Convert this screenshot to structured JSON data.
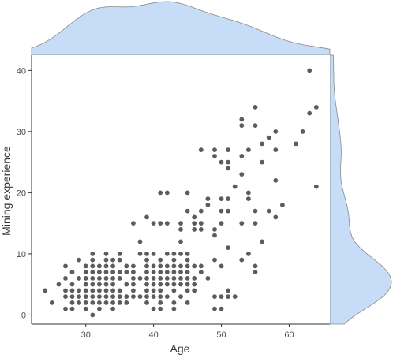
{
  "chart_data": {
    "type": "scatter",
    "title": "",
    "xlabel": "Age",
    "ylabel": "Mining experience",
    "xlim": [
      22,
      66
    ],
    "ylim": [
      -1.5,
      42.5
    ],
    "x_ticks": [
      30,
      40,
      50,
      60
    ],
    "y_ticks": [
      0,
      10,
      20,
      30,
      40
    ],
    "grid": false,
    "point_color": "#262626",
    "marginal_fill": "#c6dcf7",
    "marginal_stroke": "#8a8a8a",
    "points": [
      [
        24,
        4
      ],
      [
        25,
        2
      ],
      [
        26,
        5
      ],
      [
        27,
        1
      ],
      [
        27,
        3
      ],
      [
        27,
        4
      ],
      [
        27,
        6
      ],
      [
        27,
        8
      ],
      [
        28,
        1
      ],
      [
        28,
        2
      ],
      [
        28,
        3
      ],
      [
        28,
        4
      ],
      [
        28,
        5
      ],
      [
        28,
        7
      ],
      [
        29,
        2
      ],
      [
        29,
        3
      ],
      [
        29,
        4
      ],
      [
        29,
        6
      ],
      [
        29,
        9
      ],
      [
        30,
        1
      ],
      [
        30,
        2
      ],
      [
        30,
        3
      ],
      [
        30,
        4
      ],
      [
        30,
        5
      ],
      [
        30,
        6
      ],
      [
        30,
        7
      ],
      [
        30,
        8
      ],
      [
        31,
        0
      ],
      [
        31,
        2
      ],
      [
        31,
        3
      ],
      [
        31,
        4
      ],
      [
        31,
        5
      ],
      [
        31,
        6
      ],
      [
        31,
        7
      ],
      [
        31,
        8
      ],
      [
        31,
        9
      ],
      [
        31,
        10
      ],
      [
        32,
        1
      ],
      [
        32,
        2
      ],
      [
        32,
        3
      ],
      [
        32,
        4
      ],
      [
        32,
        5
      ],
      [
        32,
        6
      ],
      [
        32,
        7
      ],
      [
        32,
        8
      ],
      [
        33,
        2
      ],
      [
        33,
        3
      ],
      [
        33,
        4
      ],
      [
        33,
        5
      ],
      [
        33,
        6
      ],
      [
        33,
        7
      ],
      [
        33,
        8
      ],
      [
        33,
        9
      ],
      [
        33,
        10
      ],
      [
        34,
        1
      ],
      [
        34,
        2
      ],
      [
        34,
        3
      ],
      [
        34,
        4
      ],
      [
        34,
        5
      ],
      [
        34,
        6
      ],
      [
        34,
        7
      ],
      [
        34,
        8
      ],
      [
        34,
        9
      ],
      [
        35,
        2
      ],
      [
        35,
        3
      ],
      [
        35,
        4
      ],
      [
        35,
        6
      ],
      [
        35,
        7
      ],
      [
        35,
        9
      ],
      [
        35,
        10
      ],
      [
        36,
        2
      ],
      [
        36,
        3
      ],
      [
        36,
        5
      ],
      [
        36,
        7
      ],
      [
        36,
        8
      ],
      [
        37,
        3
      ],
      [
        37,
        4
      ],
      [
        37,
        5
      ],
      [
        37,
        6
      ],
      [
        37,
        7
      ],
      [
        37,
        8
      ],
      [
        37,
        15
      ],
      [
        38,
        3
      ],
      [
        38,
        6
      ],
      [
        38,
        10
      ],
      [
        38,
        12
      ],
      [
        39,
        2
      ],
      [
        39,
        3
      ],
      [
        39,
        4
      ],
      [
        39,
        5
      ],
      [
        39,
        6
      ],
      [
        39,
        7
      ],
      [
        39,
        8
      ],
      [
        39,
        9
      ],
      [
        39,
        10
      ],
      [
        39,
        16
      ],
      [
        40,
        1
      ],
      [
        40,
        3
      ],
      [
        40,
        4
      ],
      [
        40,
        5
      ],
      [
        40,
        6
      ],
      [
        40,
        7
      ],
      [
        40,
        8
      ],
      [
        40,
        10
      ],
      [
        40,
        15
      ],
      [
        41,
        1
      ],
      [
        41,
        2
      ],
      [
        41,
        3
      ],
      [
        41,
        4
      ],
      [
        41,
        5
      ],
      [
        41,
        6
      ],
      [
        41,
        7
      ],
      [
        41,
        8
      ],
      [
        41,
        9
      ],
      [
        41,
        15
      ],
      [
        41,
        20
      ],
      [
        42,
        3
      ],
      [
        42,
        5
      ],
      [
        42,
        6
      ],
      [
        42,
        7
      ],
      [
        42,
        8
      ],
      [
        42,
        10
      ],
      [
        42,
        15
      ],
      [
        42,
        20
      ],
      [
        43,
        1
      ],
      [
        43,
        2
      ],
      [
        43,
        4
      ],
      [
        43,
        5
      ],
      [
        43,
        6
      ],
      [
        43,
        7
      ],
      [
        43,
        8
      ],
      [
        43,
        9
      ],
      [
        43,
        10
      ],
      [
        44,
        3
      ],
      [
        44,
        5
      ],
      [
        44,
        6
      ],
      [
        44,
        7
      ],
      [
        44,
        8
      ],
      [
        44,
        10
      ],
      [
        44,
        12
      ],
      [
        44,
        14
      ],
      [
        44,
        15
      ],
      [
        45,
        2
      ],
      [
        45,
        4
      ],
      [
        45,
        5
      ],
      [
        45,
        6
      ],
      [
        45,
        7
      ],
      [
        45,
        8
      ],
      [
        45,
        9
      ],
      [
        45,
        10
      ],
      [
        45,
        17
      ],
      [
        45,
        20
      ],
      [
        46,
        4
      ],
      [
        46,
        5
      ],
      [
        46,
        6
      ],
      [
        46,
        8
      ],
      [
        46,
        14
      ],
      [
        46,
        15
      ],
      [
        46,
        16
      ],
      [
        47,
        7
      ],
      [
        47,
        8
      ],
      [
        47,
        14
      ],
      [
        47,
        15
      ],
      [
        47,
        17
      ],
      [
        47,
        27
      ],
      [
        48,
        6
      ],
      [
        48,
        18
      ],
      [
        48,
        19
      ],
      [
        49,
        1
      ],
      [
        49,
        3
      ],
      [
        49,
        9
      ],
      [
        49,
        13
      ],
      [
        49,
        14
      ],
      [
        49,
        26
      ],
      [
        49,
        27
      ],
      [
        50,
        1
      ],
      [
        50,
        3
      ],
      [
        50,
        8
      ],
      [
        50,
        15
      ],
      [
        50,
        17
      ],
      [
        50,
        19
      ],
      [
        50,
        25
      ],
      [
        51,
        3
      ],
      [
        51,
        4
      ],
      [
        51,
        11
      ],
      [
        51,
        17
      ],
      [
        51,
        19
      ],
      [
        51,
        24
      ],
      [
        51,
        25
      ],
      [
        51,
        27
      ],
      [
        52,
        3
      ],
      [
        52,
        21
      ],
      [
        53,
        9
      ],
      [
        53,
        15
      ],
      [
        53,
        23
      ],
      [
        53,
        26
      ],
      [
        53,
        31
      ],
      [
        53,
        32
      ],
      [
        54,
        10
      ],
      [
        54,
        19
      ],
      [
        54,
        20
      ],
      [
        54,
        27
      ],
      [
        55,
        7
      ],
      [
        55,
        8
      ],
      [
        55,
        15
      ],
      [
        55,
        17
      ],
      [
        55,
        31
      ],
      [
        55,
        34
      ],
      [
        56,
        12
      ],
      [
        56,
        25
      ],
      [
        56,
        28
      ],
      [
        57,
        17
      ],
      [
        57,
        29
      ],
      [
        58,
        16
      ],
      [
        58,
        22
      ],
      [
        58,
        27
      ],
      [
        58,
        30
      ],
      [
        59,
        18
      ],
      [
        61,
        28
      ],
      [
        62,
        30
      ],
      [
        63,
        33
      ],
      [
        63,
        40
      ],
      [
        64,
        21
      ],
      [
        64,
        34
      ]
    ]
  }
}
